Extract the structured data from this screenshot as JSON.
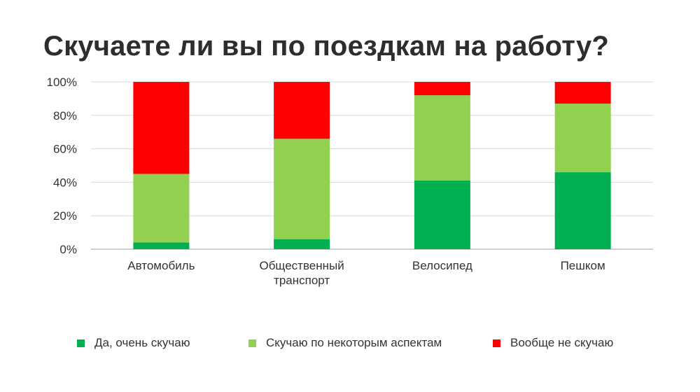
{
  "chart_data": {
    "type": "bar",
    "stacked": true,
    "title": "Скучаете ли вы по поездкам на работу?",
    "categories": [
      [
        "Автомобиль"
      ],
      [
        "Общественный",
        "транспорт"
      ],
      [
        "Велосипед"
      ],
      [
        "Пешком"
      ]
    ],
    "series": [
      {
        "name": "Да, очень скучаю",
        "color": "#00b050",
        "values": [
          4,
          6,
          41,
          46
        ]
      },
      {
        "name": "Скучаю по некоторым аспектам",
        "color": "#92d050",
        "values": [
          41,
          60,
          51,
          41
        ]
      },
      {
        "name": "Вообще не скучаю",
        "color": "#ff0000",
        "values": [
          55,
          34,
          8,
          13
        ]
      }
    ],
    "y_ticks": [
      "0%",
      "20%",
      "40%",
      "60%",
      "80%",
      "100%"
    ],
    "ylim": [
      0,
      100
    ],
    "grid": true,
    "legend_position": "bottom"
  }
}
